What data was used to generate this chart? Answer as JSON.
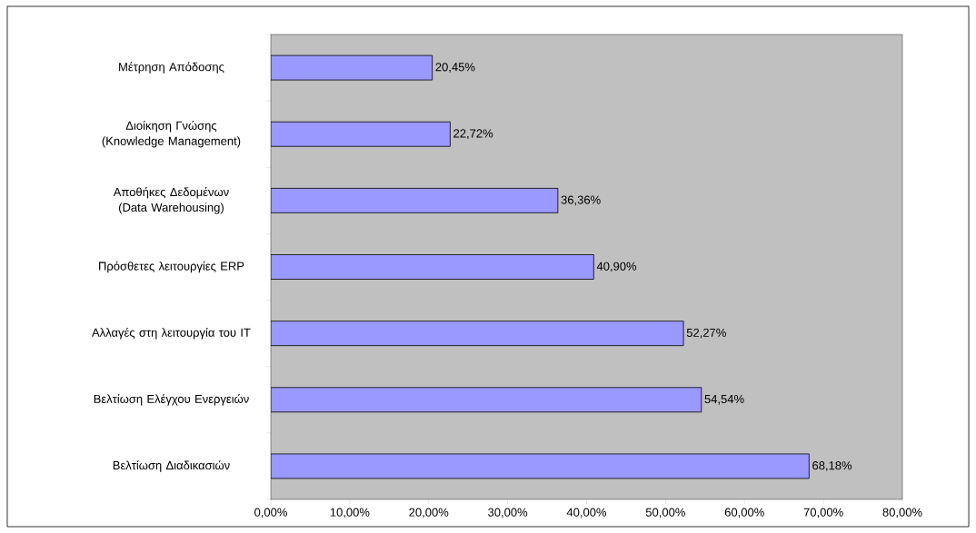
{
  "chart_data": {
    "type": "bar",
    "orientation": "horizontal",
    "categories": [
      "Μέτρηση Απόδοσης",
      "Διοίκηση Γνώσης (Knowledge Management)",
      "Αποθήκες Δεδομένων (Data Warehousing)",
      "Πρόσθετες λειτουργίες ERP",
      "Αλλαγές στη λειτουργία του IT",
      "Βελτίωση Ελέγχου Ενεργειών",
      "Βελτίωση Διαδικασιών"
    ],
    "values": [
      20.45,
      22.72,
      36.36,
      40.9,
      52.27,
      54.54,
      68.18
    ],
    "value_labels": [
      "20,45%",
      "22,72%",
      "36,36%",
      "40,90%",
      "52,27%",
      "54,54%",
      "68,18%"
    ],
    "color": "#9999ff",
    "xlim": [
      0,
      80
    ],
    "xticks": [
      {
        "value": 0,
        "label": "0,00%"
      },
      {
        "value": 10,
        "label": "10,00%"
      },
      {
        "value": 20,
        "label": "20,00%"
      },
      {
        "value": 30,
        "label": "30,00%"
      },
      {
        "value": 40,
        "label": "40,00%"
      },
      {
        "value": 50,
        "label": "50,00%"
      },
      {
        "value": 60,
        "label": "60,00%"
      },
      {
        "value": 70,
        "label": "70,00%"
      },
      {
        "value": 80,
        "label": "80,00%"
      }
    ]
  }
}
